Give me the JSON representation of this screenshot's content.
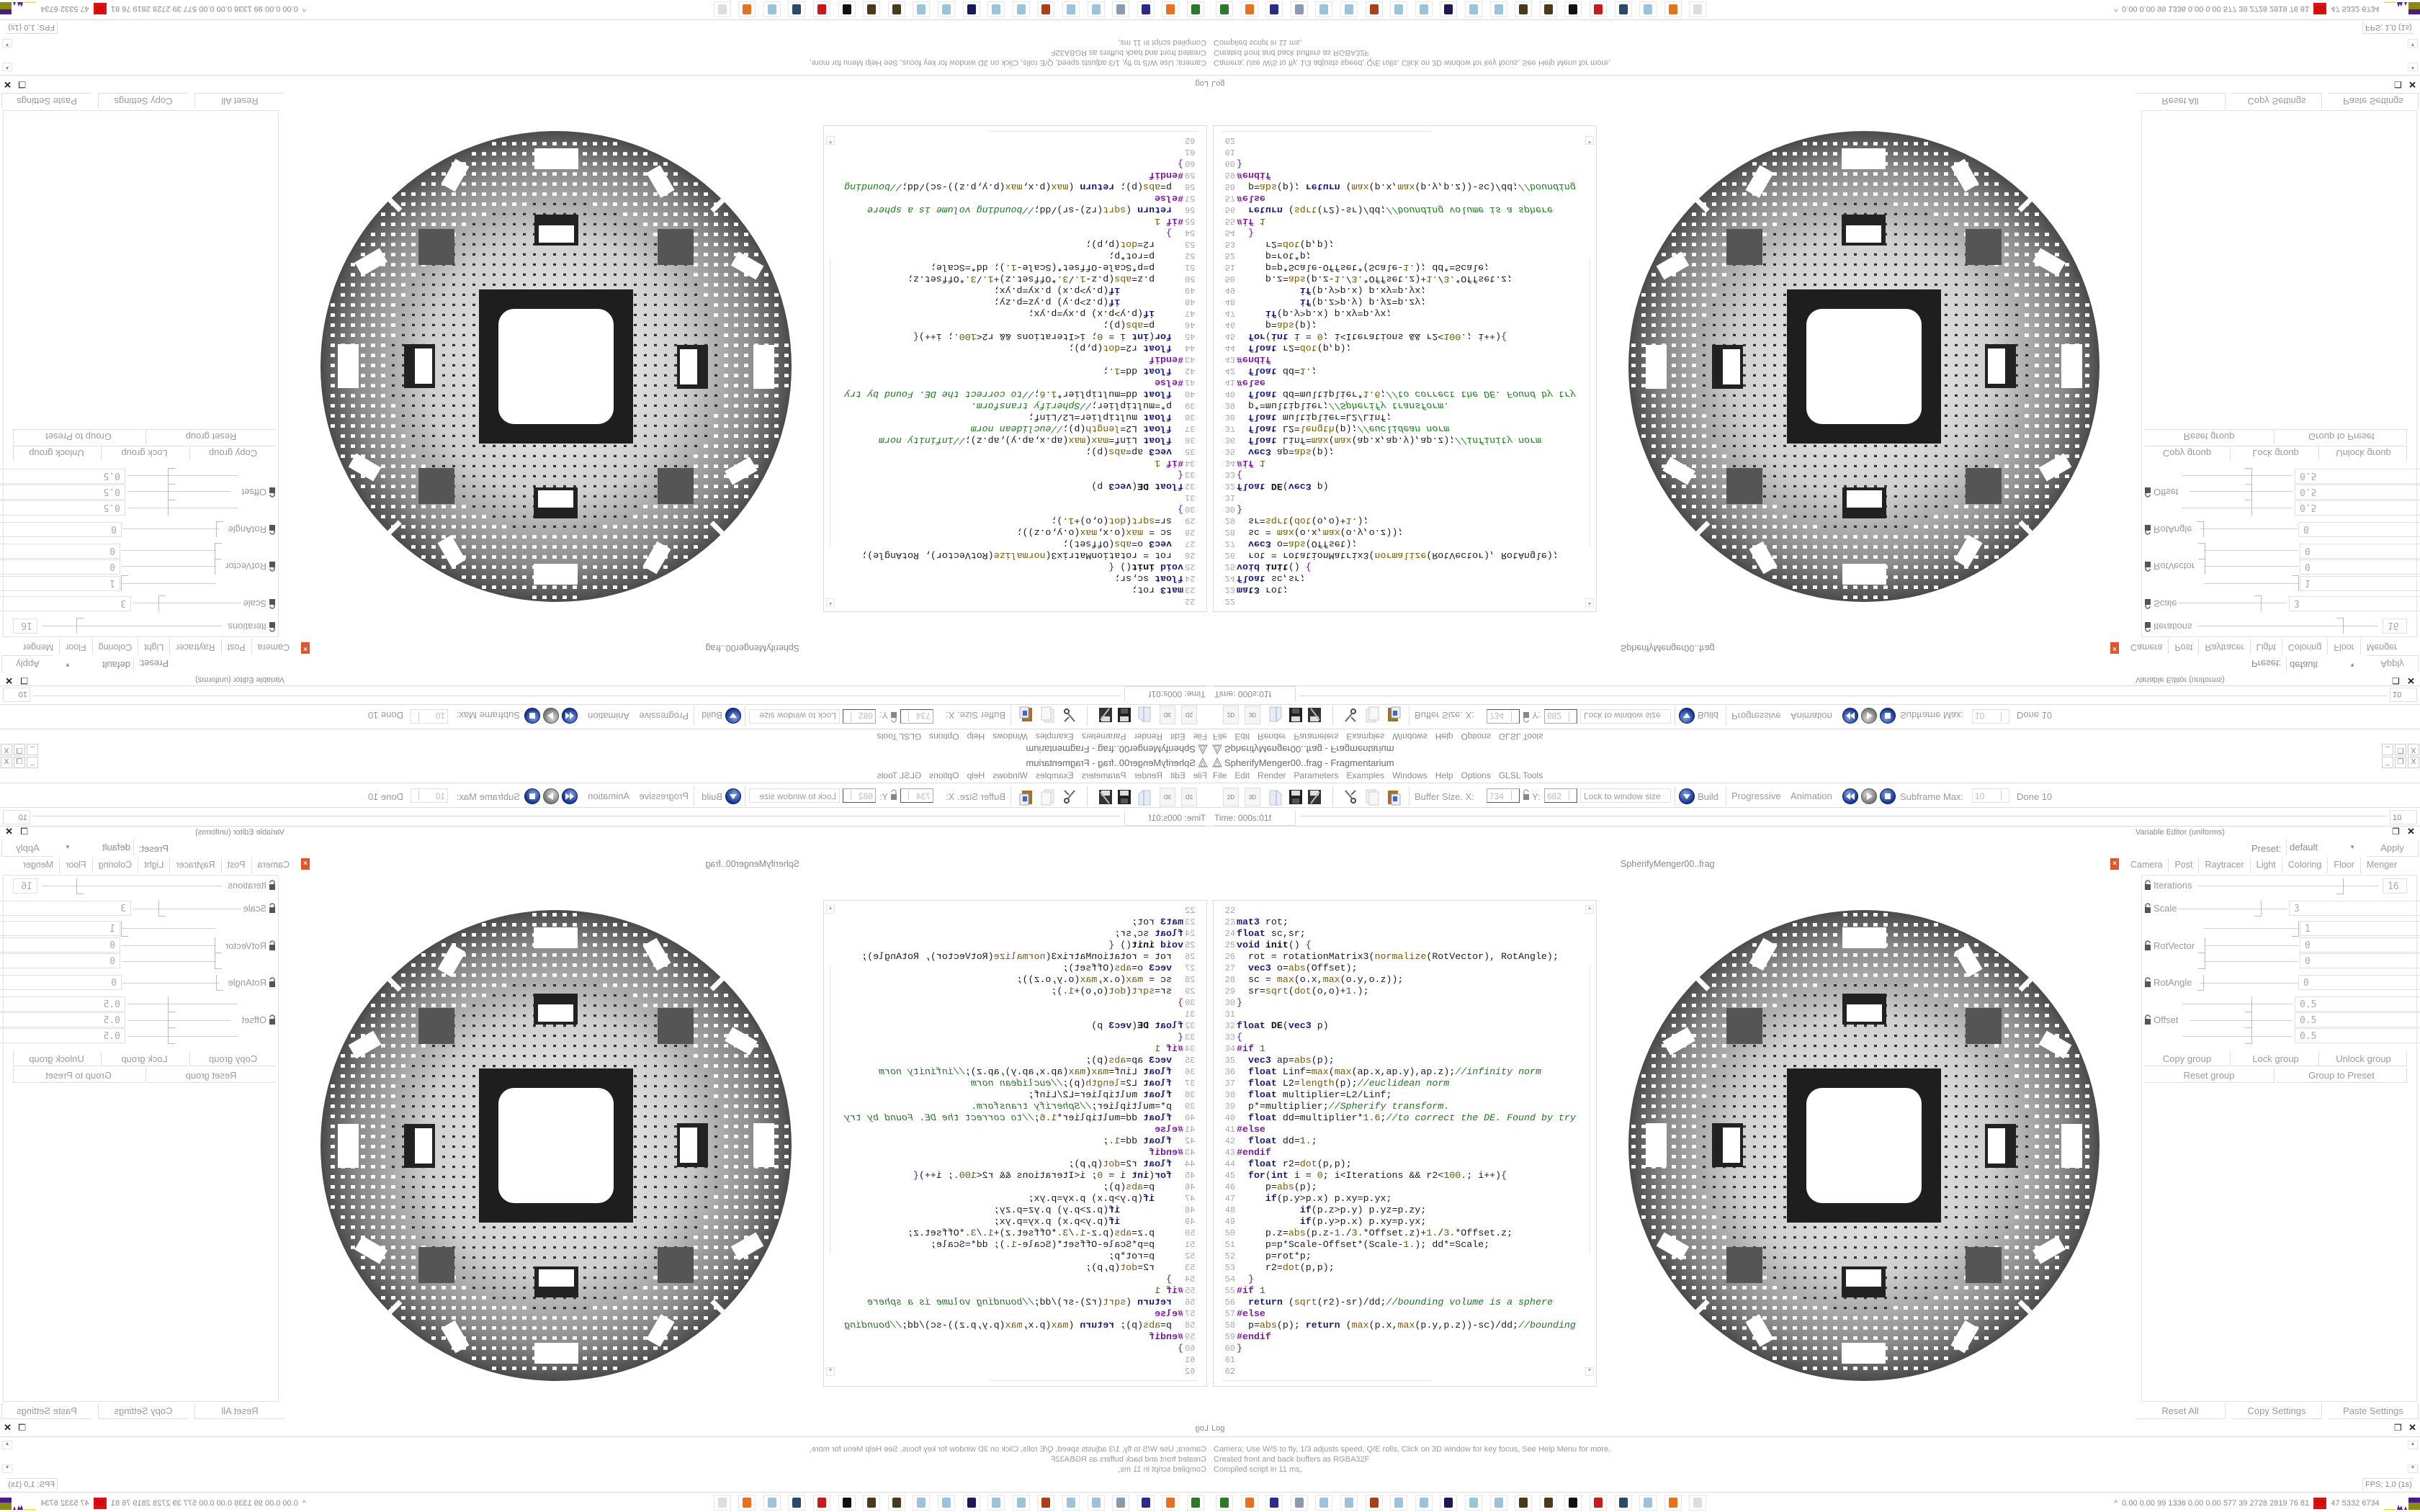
{
  "window": {
    "title": "SpherifyMenger00..frag - Fragmentarium",
    "minimize": "_",
    "restore": "❐",
    "close": "X"
  },
  "menu": [
    "File",
    "Edit",
    "Render",
    "Parameters",
    "Examples",
    "Windows",
    "Help",
    "Options",
    "GLSL Tools"
  ],
  "toolbar": {
    "btn_2d": "2D",
    "btn_3d": "3D",
    "buffer_size_label": "Buffer Size. X:",
    "buffer_x": "734",
    "y_label": "Y:",
    "buffer_y": "682",
    "lock_mode": "Lock to window size",
    "build": "Build",
    "progressive": "Progressive",
    "animation": "Animation",
    "subframe_label": "Subframe Max:",
    "subframe_max": "10",
    "done": "Done 10"
  },
  "timeline": {
    "time": "Time: 000s:01f",
    "frame_value": "10"
  },
  "editor": {
    "tab_label": "SpherifyMenger00..frag",
    "lines": [
      {
        "n": "22",
        "t": ""
      },
      {
        "n": "23",
        "t": "mat3 rot;"
      },
      {
        "n": "24",
        "t": "float sc,sr;"
      },
      {
        "n": "25",
        "t": "void init() {"
      },
      {
        "n": "26",
        "t": "  rot = rotationMatrix3(normalize(RotVector), RotAngle);"
      },
      {
        "n": "27",
        "t": "  vec3 o=abs(Offset);"
      },
      {
        "n": "28",
        "t": "  sc = max(o.x,max(o.y,o.z));"
      },
      {
        "n": "29",
        "t": "  sr=sqrt(dot(o,o)+1.);"
      },
      {
        "n": "30",
        "t": "}"
      },
      {
        "n": "31",
        "t": ""
      },
      {
        "n": "32",
        "t": "float DE(vec3 p)"
      },
      {
        "n": "33",
        "t": "{"
      },
      {
        "n": "34",
        "t": "#if 1"
      },
      {
        "n": "35",
        "t": "  vec3 ap=abs(p);"
      },
      {
        "n": "36",
        "t": "  float Linf=max(max(ap.x,ap.y),ap.z);//infinity norm"
      },
      {
        "n": "37",
        "t": "  float L2=length(p);//euclidean norm"
      },
      {
        "n": "38",
        "t": "  float multiplier=L2/Linf;"
      },
      {
        "n": "39",
        "t": "  p*=multiplier;//Spherify transform."
      },
      {
        "n": "40",
        "t": "  float dd=multiplier*1.6;//to correct the DE. Found by try"
      },
      {
        "n": "41",
        "t": "#else"
      },
      {
        "n": "42",
        "t": "  float dd=1.;"
      },
      {
        "n": "43",
        "t": "#endif"
      },
      {
        "n": "44",
        "t": "  float r2=dot(p,p);"
      },
      {
        "n": "45",
        "t": "  for(int i = 0; i<Iterations && r2<100.; i++){"
      },
      {
        "n": "46",
        "t": "     p=abs(p);"
      },
      {
        "n": "47",
        "t": "     if(p.y>p.x) p.xy=p.yx;"
      },
      {
        "n": "48",
        "t": "           if(p.z>p.y) p.yz=p.zy;"
      },
      {
        "n": "49",
        "t": "           if(p.y>p.x) p.xy=p.yx;"
      },
      {
        "n": "50",
        "t": "     p.z=abs(p.z-1./3.*Offset.z)+1./3.*Offset.z;"
      },
      {
        "n": "51",
        "t": "     p=p*Scale-Offset*(Scale-1.); dd*=Scale;"
      },
      {
        "n": "52",
        "t": "     p=rot*p;"
      },
      {
        "n": "53",
        "t": "     r2=dot(p,p);"
      },
      {
        "n": "54",
        "t": "  }"
      },
      {
        "n": "55",
        "t": "#if 1"
      },
      {
        "n": "56",
        "t": "  return (sqrt(r2)-sr)/dd;//bounding volume is a sphere"
      },
      {
        "n": "57",
        "t": "#else"
      },
      {
        "n": "58",
        "t": "  p=abs(p); return (max(p.x,max(p.y,p.z))-sc)/dd;//bounding"
      },
      {
        "n": "59",
        "t": "#endif"
      },
      {
        "n": "60",
        "t": "}"
      },
      {
        "n": "61",
        "t": ""
      },
      {
        "n": "62",
        "t": ""
      }
    ]
  },
  "variable_editor": {
    "title": "Variable Editor (uniforms)",
    "preset_label": "Preset:",
    "preset_value": "default",
    "apply": "Apply",
    "tabs": [
      "Camera",
      "Post",
      "Raytracer",
      "Light",
      "Coloring",
      "Floor",
      "Menger"
    ],
    "active_tab": "Menger",
    "variables": {
      "iterations": {
        "label": "Iterations",
        "value": "16"
      },
      "scale": {
        "label": "Scale",
        "value": "3"
      },
      "rotvector": {
        "label": "RotVector",
        "values": [
          "1",
          "0",
          "0"
        ]
      },
      "rotangle": {
        "label": "RotAngle",
        "value": "0"
      },
      "offset": {
        "label": "Offset",
        "values": [
          "0.5",
          "0.5",
          "0.5"
        ]
      }
    },
    "group_buttons": {
      "copy": "Copy group",
      "lock": "Lock group",
      "unlock": "Unlock group",
      "reset": "Reset group",
      "to_preset": "Group to Preset"
    },
    "reset_all": "Reset All",
    "copy_settings": "Copy Settings",
    "paste_settings": "Paste Settings"
  },
  "log": {
    "title": "Log",
    "lines": [
      "Camera; Use W/S to fly, 1/3 adjusts speed, Q/E rolls, Click on 3D window for key focus, See Help Menu for more,",
      "Created front and back buffers as RGBA32F",
      "Compiled script in 11 ms,"
    ],
    "fps": "FPS; 1,0 (1s)"
  },
  "taskbar": {
    "icons": [
      {
        "name": "terminal-icon",
        "color": "#2a7a2a"
      },
      {
        "name": "firefox-icon",
        "color": "#e8711c"
      },
      {
        "name": "floppy-64-icon",
        "color": "#2a2a8a"
      },
      {
        "name": "scroll-icon",
        "color": "#8a9ab0"
      },
      {
        "name": "notepad-icon",
        "color": "#9ac4da"
      },
      {
        "name": "notepad-icon",
        "color": "#9ac4da"
      },
      {
        "name": "paint-splat-icon",
        "color": "#a8401a"
      },
      {
        "name": "notepad-icon",
        "color": "#9ac4da"
      },
      {
        "name": "notepad-icon",
        "color": "#9ac4da"
      },
      {
        "name": "ifs-icon",
        "color": "#1a1a5a"
      },
      {
        "name": "notepad-icon",
        "color": "#9ac4da"
      },
      {
        "name": "notepad-icon",
        "color": "#9ac4da"
      },
      {
        "name": "mandelbulb-icon",
        "color": "#4a3a1a"
      },
      {
        "name": "mandelbulb-icon",
        "color": "#4a3a1a"
      },
      {
        "name": "fractal-bw-icon",
        "color": "#111111"
      },
      {
        "name": "red-gear-icon",
        "color": "#c81a1a"
      },
      {
        "name": "monitor-icon",
        "color": "#2a4a6a"
      },
      {
        "name": "notepad-icon",
        "color": "#9ac4da"
      },
      {
        "name": "firefox-icon",
        "color": "#e8711c"
      },
      {
        "name": "fragmentarium-icon",
        "color": "#dddddd"
      }
    ],
    "expand": "^",
    "stats_before": "0.00 0.00  99  1336 0.00 0.00  577   39  2728 2819  76   81",
    "stats_alert": "50",
    "stats_after": "47  5332 6734",
    "alert_color": "#e01010"
  }
}
